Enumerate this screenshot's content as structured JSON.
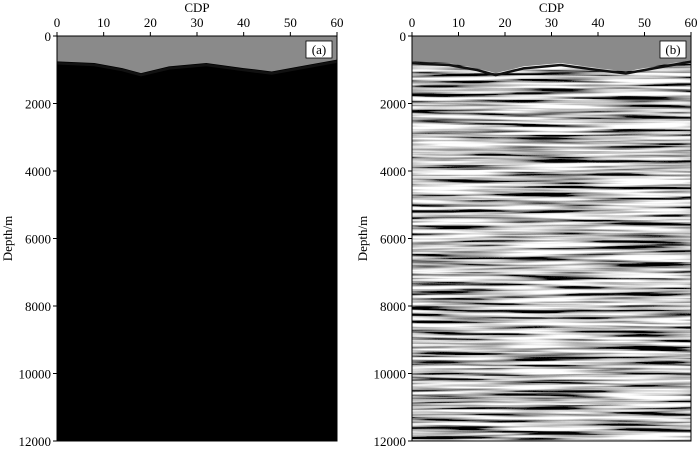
{
  "chart_data": [
    {
      "type": "heatmap",
      "panel_label": "(a)",
      "xlabel": "CDP",
      "ylabel": "Depth/m",
      "xlim": [
        0,
        60
      ],
      "ylim": [
        12000,
        0
      ],
      "xticks": [
        "0",
        "10",
        "20",
        "30",
        "40",
        "50",
        "60"
      ],
      "yticks": [
        "0",
        "2000",
        "4000",
        "6000",
        "8000",
        "10000",
        "12000"
      ],
      "colormap": "grayscale seismic amplitude",
      "x_axis_position": "top"
    },
    {
      "type": "heatmap",
      "panel_label": "(b)",
      "xlabel": "CDP",
      "ylabel": "Depth/m",
      "xlim": [
        0,
        60
      ],
      "ylim": [
        12000,
        0
      ],
      "xticks": [
        "0",
        "10",
        "20",
        "30",
        "40",
        "50",
        "60"
      ],
      "yticks": [
        "0",
        "2000",
        "4000",
        "6000",
        "8000",
        "10000",
        "12000"
      ],
      "colormap": "grayscale seismic amplitude",
      "x_axis_position": "top"
    }
  ],
  "colors": {
    "background_water": "#8a8a8a",
    "axis": "#000000"
  }
}
